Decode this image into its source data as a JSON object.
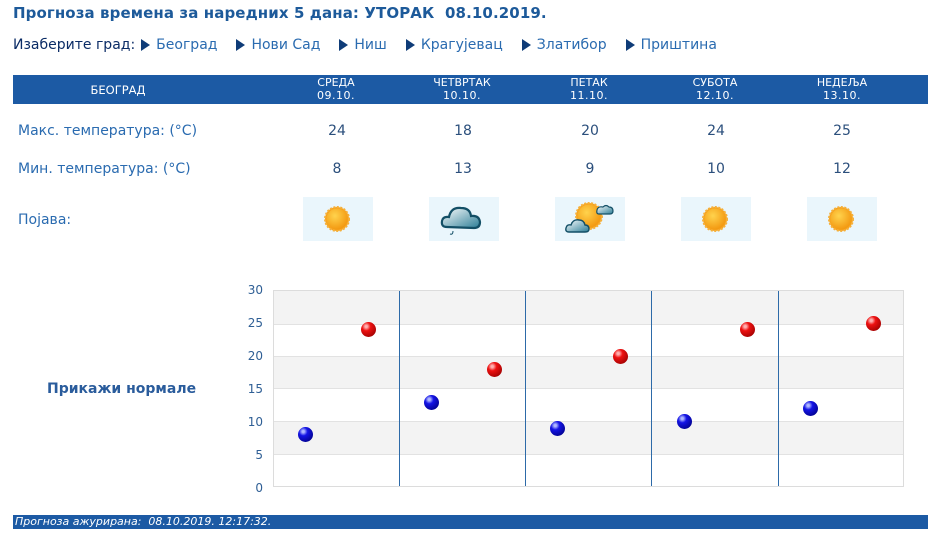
{
  "header": {
    "title": "Прогноза времена за наредних 5 дана: УТОРАК  08.10.2019."
  },
  "city_selector": {
    "label": "Изаберите град:",
    "cities": [
      "Београд",
      "Нови Сад",
      "Ниш",
      "Крагујевац",
      "Златибор",
      "Приштина"
    ]
  },
  "table": {
    "city": "БЕОГРАД",
    "days": [
      {
        "name": "СРЕДА",
        "date": "09.10.",
        "max": "24",
        "min": "8",
        "icon": "sunny-icon"
      },
      {
        "name": "ЧЕТВРТАК",
        "date": "10.10.",
        "max": "18",
        "min": "13",
        "icon": "cloud-light-rain-icon"
      },
      {
        "name": "ПЕТАК",
        "date": "11.10.",
        "max": "20",
        "min": "9",
        "icon": "sun-with-clouds-icon"
      },
      {
        "name": "СУБОТА",
        "date": "12.10.",
        "max": "24",
        "min": "10",
        "icon": "sunny-icon"
      },
      {
        "name": "НЕДЕЉА",
        "date": "13.10.",
        "max": "25",
        "min": "12",
        "icon": "sunny-icon"
      }
    ],
    "row_labels": {
      "max": "Макс. температура: (°C)",
      "min": "Мин. температура: (°C)",
      "phenomenon": "Појава:"
    }
  },
  "chart": {
    "show_normals_label": "Прикажи нормале",
    "y_ticks": [
      "30",
      "25",
      "20",
      "15",
      "10",
      "5",
      "0"
    ]
  },
  "colors": {
    "accent": "#1c5aa4",
    "max_dot": "#ee1111",
    "min_dot": "#1414e6"
  },
  "footer": {
    "updated": "Прогноза ажурирана:  08.10.2019. 12:17:32."
  },
  "chart_data": {
    "type": "scatter",
    "title": "",
    "categories": [
      "09.10.",
      "10.10.",
      "11.10.",
      "12.10.",
      "13.10."
    ],
    "series": [
      {
        "name": "Макс. температура",
        "color": "#ee1111",
        "values": [
          24,
          18,
          20,
          24,
          25
        ]
      },
      {
        "name": "Мин. температура",
        "color": "#1414e6",
        "values": [
          8,
          13,
          9,
          10,
          12
        ]
      }
    ],
    "xlabel": "",
    "ylabel": "",
    "ylim": [
      0,
      30
    ],
    "yticks": [
      0,
      5,
      10,
      15,
      20,
      25,
      30
    ],
    "grid": true,
    "legend": "none"
  }
}
